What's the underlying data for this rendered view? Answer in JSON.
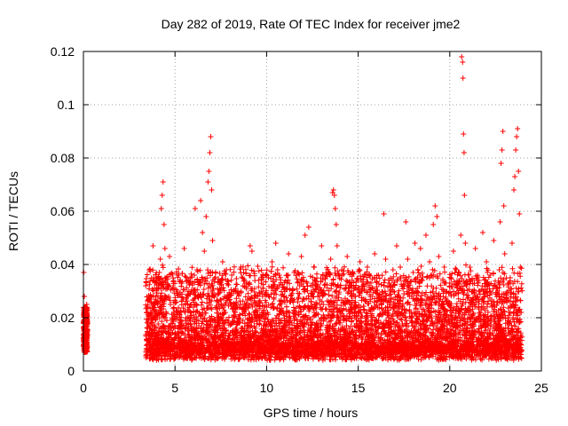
{
  "chart_data": {
    "type": "scatter",
    "title": "Day 282 of 2019, Rate Of TEC Index for receiver jme2",
    "xlabel": "GPS time / hours",
    "ylabel": "ROTI / TECUs",
    "xlim": [
      0,
      25
    ],
    "ylim": [
      0,
      0.12
    ],
    "x_ticks": [
      0,
      5,
      10,
      15,
      20,
      25
    ],
    "x_tick_labels": [
      "0",
      "5",
      "10",
      "15",
      "20",
      "25"
    ],
    "y_ticks": [
      0,
      0.02,
      0.04,
      0.06,
      0.08,
      0.1,
      0.12
    ],
    "y_tick_labels": [
      "0",
      "0.02",
      "0.04",
      "0.06",
      "0.08",
      "0.1",
      "0.12"
    ],
    "grid": true,
    "marker": "+",
    "series": [
      {
        "name": "ROTI",
        "color": "#ff0000",
        "points": [
          [
            0.02,
            0.037
          ],
          [
            0.05,
            0.028
          ],
          [
            0.08,
            0.024
          ],
          [
            0.1,
            0.022
          ],
          [
            0.12,
            0.018
          ],
          [
            0.15,
            0.015
          ],
          [
            0.17,
            0.012
          ],
          [
            0.2,
            0.009
          ],
          [
            0.06,
            0.014
          ],
          [
            0.1,
            0.011
          ],
          [
            0.14,
            0.02
          ],
          [
            0.18,
            0.025
          ],
          [
            0.03,
            0.019
          ],
          [
            0.09,
            0.007
          ],
          [
            0.16,
            0.008
          ],
          [
            0.21,
            0.013
          ],
          [
            3.4,
            0.032
          ],
          [
            3.45,
            0.022
          ],
          [
            3.5,
            0.016
          ],
          [
            3.55,
            0.012
          ],
          [
            3.6,
            0.038
          ],
          [
            3.65,
            0.027
          ],
          [
            3.7,
            0.009
          ],
          [
            3.75,
            0.018
          ],
          [
            3.8,
            0.047
          ],
          [
            3.85,
            0.025
          ],
          [
            3.9,
            0.014
          ],
          [
            3.95,
            0.007
          ],
          [
            4.0,
            0.033
          ],
          [
            4.05,
            0.021
          ],
          [
            4.1,
            0.011
          ],
          [
            4.15,
            0.037
          ],
          [
            4.2,
            0.042
          ],
          [
            4.25,
            0.061
          ],
          [
            4.3,
            0.066
          ],
          [
            4.35,
            0.071
          ],
          [
            4.4,
            0.055
          ],
          [
            4.45,
            0.046
          ],
          [
            4.5,
            0.034
          ],
          [
            4.55,
            0.019
          ],
          [
            4.6,
            0.012
          ],
          [
            4.65,
            0.028
          ],
          [
            4.7,
            0.043
          ],
          [
            4.75,
            0.025
          ],
          [
            4.8,
            0.016
          ],
          [
            4.85,
            0.009
          ],
          [
            4.9,
            0.031
          ],
          [
            4.95,
            0.022
          ],
          [
            5.0,
            0.014
          ],
          [
            5.1,
            0.029
          ],
          [
            5.2,
            0.036
          ],
          [
            5.3,
            0.019
          ],
          [
            5.4,
            0.011
          ],
          [
            5.5,
            0.046
          ],
          [
            5.6,
            0.027
          ],
          [
            5.7,
            0.015
          ],
          [
            5.8,
            0.033
          ],
          [
            5.9,
            0.008
          ],
          [
            6.0,
            0.024
          ],
          [
            6.1,
            0.061
          ],
          [
            6.2,
            0.038
          ],
          [
            6.3,
            0.017
          ],
          [
            6.4,
            0.064
          ],
          [
            6.5,
            0.052
          ],
          [
            6.6,
            0.045
          ],
          [
            6.7,
            0.058
          ],
          [
            6.8,
            0.071
          ],
          [
            6.85,
            0.075
          ],
          [
            6.9,
            0.082
          ],
          [
            6.95,
            0.088
          ],
          [
            7.0,
            0.068
          ],
          [
            7.05,
            0.049
          ],
          [
            7.1,
            0.031
          ],
          [
            7.2,
            0.019
          ],
          [
            7.3,
            0.026
          ],
          [
            7.4,
            0.012
          ],
          [
            7.5,
            0.034
          ],
          [
            7.6,
            0.041
          ],
          [
            7.7,
            0.022
          ],
          [
            7.8,
            0.015
          ],
          [
            7.9,
            0.028
          ],
          [
            8.0,
            0.009
          ],
          [
            8.1,
            0.036
          ],
          [
            8.2,
            0.021
          ],
          [
            8.3,
            0.013
          ],
          [
            8.4,
            0.029
          ],
          [
            8.5,
            0.018
          ],
          [
            8.6,
            0.039
          ],
          [
            8.7,
            0.011
          ],
          [
            8.8,
            0.025
          ],
          [
            8.9,
            0.033
          ],
          [
            9.0,
            0.016
          ],
          [
            9.1,
            0.047
          ],
          [
            9.2,
            0.045
          ],
          [
            9.3,
            0.022
          ],
          [
            9.4,
            0.012
          ],
          [
            9.5,
            0.028
          ],
          [
            9.6,
            0.019
          ],
          [
            9.7,
            0.008
          ],
          [
            9.8,
            0.031
          ],
          [
            9.9,
            0.014
          ],
          [
            10.0,
            0.024
          ],
          [
            10.1,
            0.035
          ],
          [
            10.2,
            0.017
          ],
          [
            10.3,
            0.041
          ],
          [
            10.4,
            0.027
          ],
          [
            10.5,
            0.048
          ],
          [
            10.6,
            0.038
          ],
          [
            10.7,
            0.013
          ],
          [
            10.8,
            0.022
          ],
          [
            10.9,
            0.009
          ],
          [
            11.0,
            0.031
          ],
          [
            11.1,
            0.019
          ],
          [
            11.2,
            0.044
          ],
          [
            11.3,
            0.026
          ],
          [
            11.4,
            0.015
          ],
          [
            11.5,
            0.037
          ],
          [
            11.6,
            0.021
          ],
          [
            11.7,
            0.011
          ],
          [
            11.8,
            0.029
          ],
          [
            11.9,
            0.043
          ],
          [
            12.0,
            0.018
          ],
          [
            12.1,
            0.051
          ],
          [
            12.2,
            0.033
          ],
          [
            12.3,
            0.054
          ],
          [
            12.4,
            0.024
          ],
          [
            12.5,
            0.012
          ],
          [
            12.6,
            0.039
          ],
          [
            12.7,
            0.016
          ],
          [
            12.8,
            0.028
          ],
          [
            12.9,
            0.009
          ],
          [
            13.0,
            0.047
          ],
          [
            13.1,
            0.021
          ],
          [
            13.2,
            0.035
          ],
          [
            13.3,
            0.014
          ],
          [
            13.4,
            0.026
          ],
          [
            13.5,
            0.042
          ],
          [
            13.6,
            0.067
          ],
          [
            13.65,
            0.068
          ],
          [
            13.7,
            0.066
          ],
          [
            13.75,
            0.061
          ],
          [
            13.8,
            0.055
          ],
          [
            13.85,
            0.047
          ],
          [
            13.9,
            0.032
          ],
          [
            14.0,
            0.019
          ],
          [
            14.1,
            0.038
          ],
          [
            14.2,
            0.011
          ],
          [
            14.3,
            0.025
          ],
          [
            14.4,
            0.043
          ],
          [
            14.5,
            0.016
          ],
          [
            14.6,
            0.029
          ],
          [
            14.7,
            0.037
          ],
          [
            14.8,
            0.022
          ],
          [
            14.9,
            0.013
          ],
          [
            15.0,
            0.034
          ],
          [
            15.1,
            0.041
          ],
          [
            15.2,
            0.018
          ],
          [
            15.3,
            0.027
          ],
          [
            15.4,
            0.009
          ],
          [
            15.5,
            0.039
          ],
          [
            15.6,
            0.023
          ],
          [
            15.7,
            0.015
          ],
          [
            15.8,
            0.031
          ],
          [
            15.9,
            0.044
          ],
          [
            16.0,
            0.019
          ],
          [
            16.1,
            0.036
          ],
          [
            16.2,
            0.012
          ],
          [
            16.3,
            0.028
          ],
          [
            16.4,
            0.059
          ],
          [
            16.5,
            0.042
          ],
          [
            16.6,
            0.021
          ],
          [
            16.7,
            0.033
          ],
          [
            16.8,
            0.014
          ],
          [
            16.9,
            0.038
          ],
          [
            17.0,
            0.025
          ],
          [
            17.1,
            0.047
          ],
          [
            17.2,
            0.017
          ],
          [
            17.3,
            0.039
          ],
          [
            17.4,
            0.011
          ],
          [
            17.5,
            0.029
          ],
          [
            17.6,
            0.056
          ],
          [
            17.7,
            0.042
          ],
          [
            17.8,
            0.023
          ],
          [
            17.9,
            0.015
          ],
          [
            18.0,
            0.037
          ],
          [
            18.1,
            0.048
          ],
          [
            18.2,
            0.027
          ],
          [
            18.3,
            0.013
          ],
          [
            18.4,
            0.046
          ],
          [
            18.5,
            0.034
          ],
          [
            18.6,
            0.019
          ],
          [
            18.7,
            0.051
          ],
          [
            18.8,
            0.024
          ],
          [
            18.9,
            0.041
          ],
          [
            19.0,
            0.036
          ],
          [
            19.1,
            0.055
          ],
          [
            19.2,
            0.062
          ],
          [
            19.3,
            0.058
          ],
          [
            19.4,
            0.043
          ],
          [
            19.5,
            0.028
          ],
          [
            19.6,
            0.017
          ],
          [
            19.7,
            0.039
          ],
          [
            19.8,
            0.026
          ],
          [
            19.9,
            0.012
          ],
          [
            20.0,
            0.033
          ],
          [
            20.1,
            0.021
          ],
          [
            20.2,
            0.045
          ],
          [
            20.3,
            0.029
          ],
          [
            20.4,
            0.016
          ],
          [
            20.5,
            0.037
          ],
          [
            20.6,
            0.051
          ],
          [
            20.65,
            0.118
          ],
          [
            20.7,
            0.116
          ],
          [
            20.72,
            0.11
          ],
          [
            20.75,
            0.089
          ],
          [
            20.78,
            0.082
          ],
          [
            20.8,
            0.066
          ],
          [
            20.85,
            0.048
          ],
          [
            20.9,
            0.032
          ],
          [
            21.0,
            0.023
          ],
          [
            21.1,
            0.039
          ],
          [
            21.2,
            0.014
          ],
          [
            21.3,
            0.027
          ],
          [
            21.4,
            0.046
          ],
          [
            21.5,
            0.019
          ],
          [
            21.6,
            0.034
          ],
          [
            21.7,
            0.011
          ],
          [
            21.8,
            0.052
          ],
          [
            21.9,
            0.028
          ],
          [
            22.0,
            0.041
          ],
          [
            22.1,
            0.017
          ],
          [
            22.2,
            0.036
          ],
          [
            22.3,
            0.024
          ],
          [
            22.4,
            0.049
          ],
          [
            22.5,
            0.013
          ],
          [
            22.6,
            0.031
          ],
          [
            22.7,
            0.038
          ],
          [
            22.75,
            0.056
          ],
          [
            22.8,
            0.078
          ],
          [
            22.85,
            0.083
          ],
          [
            22.9,
            0.09
          ],
          [
            22.95,
            0.062
          ],
          [
            23.0,
            0.044
          ],
          [
            23.1,
            0.027
          ],
          [
            23.2,
            0.016
          ],
          [
            23.3,
            0.035
          ],
          [
            23.4,
            0.048
          ],
          [
            23.5,
            0.068
          ],
          [
            23.55,
            0.073
          ],
          [
            23.6,
            0.083
          ],
          [
            23.65,
            0.088
          ],
          [
            23.7,
            0.091
          ],
          [
            23.75,
            0.075
          ],
          [
            23.8,
            0.059
          ],
          [
            23.85,
            0.039
          ],
          [
            23.9,
            0.022
          ]
        ]
      }
    ]
  }
}
